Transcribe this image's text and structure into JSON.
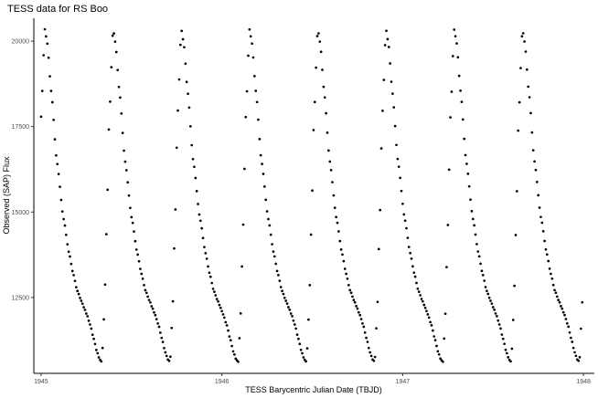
{
  "chart_data": {
    "type": "scatter",
    "title": "TESS data for RS Boo",
    "xlabel": "TESS Barycentric Julian Date (TBJD)",
    "ylabel": "Observed (SAP) Flux",
    "xlim": [
      1944.96,
      1948.06
    ],
    "ylim": [
      10280,
      20670
    ],
    "xticks": [
      1945,
      1946,
      1947,
      1948
    ],
    "xtick_labels": [
      "1945",
      "1946",
      "1947",
      "1948"
    ],
    "yticks": [
      12500,
      15000,
      17500,
      20000
    ],
    "ytick_labels": [
      "12500",
      "15000",
      "17500",
      "20000"
    ],
    "grid": false,
    "legend": "none",
    "point_color": "#000000",
    "cycle": {
      "period": 0.37734,
      "first_minimum": 1944.9586,
      "cadence": 0.0069444,
      "start": 1945.0,
      "end": 1947.9972,
      "rise_fraction": 0.165,
      "max_flux": 20350,
      "min_flux": 10620,
      "profile_phase": [
        0.0,
        0.035,
        0.07,
        0.11,
        0.165,
        0.2,
        0.26,
        0.34,
        0.44,
        0.52,
        0.58,
        0.64,
        0.7,
        0.74,
        0.78,
        0.83,
        0.88,
        0.93,
        0.97,
        1.0
      ],
      "profile_flux": [
        10620,
        12000,
        14500,
        17800,
        20350,
        19950,
        18500,
        16500,
        14800,
        13800,
        13200,
        12700,
        12400,
        12200,
        12000,
        11700,
        11300,
        10900,
        10680,
        10620
      ]
    }
  }
}
